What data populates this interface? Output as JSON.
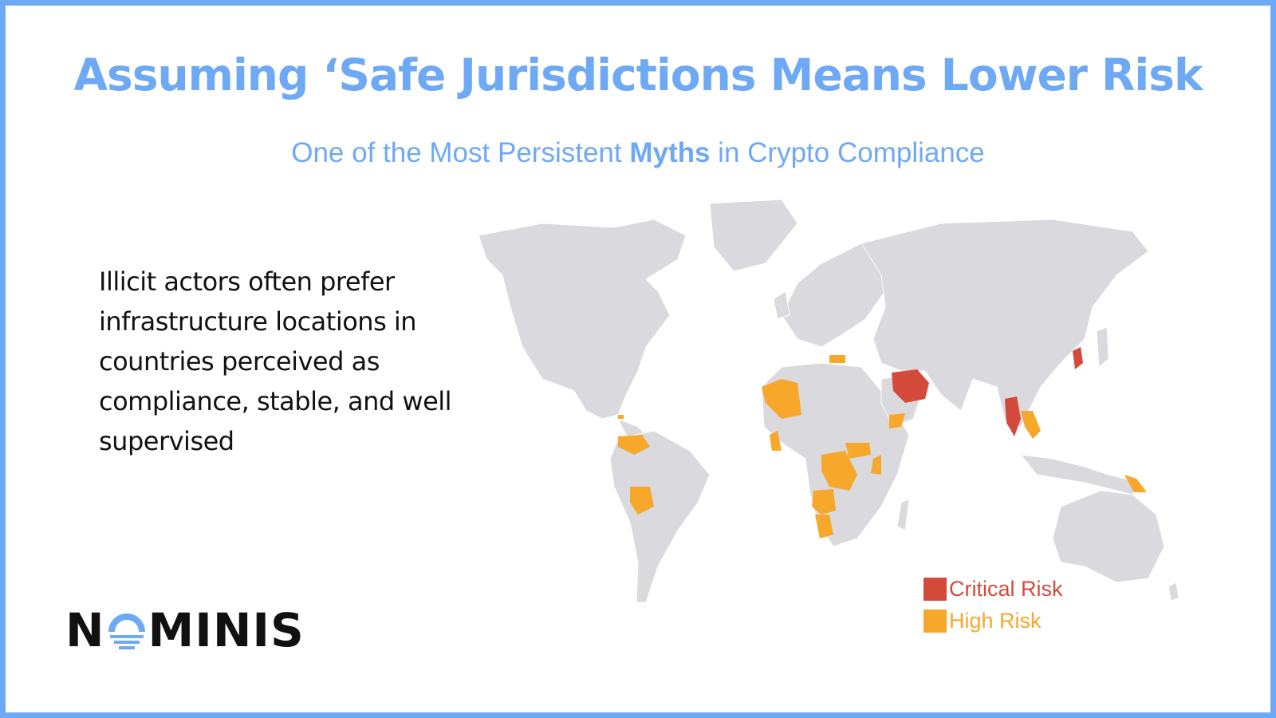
{
  "header": {
    "title": "Assuming ‘Safe Jurisdictions Means Lower Risk",
    "subtitle_before": "One of the Most Persistent ",
    "subtitle_bold": "Myths",
    "subtitle_after": " in Crypto Compliance"
  },
  "body": {
    "text": "Illicit actors often prefer infrastructure locations in countries perceived as compliance, stable, and well supervised"
  },
  "logo": {
    "text_left": "N",
    "text_right": "MINIS",
    "color": "#111111",
    "accent": "#6ea9f5"
  },
  "legend": {
    "items": [
      {
        "label": "Critical Risk",
        "color": "#d44a3a"
      },
      {
        "label": "High Risk",
        "color": "#f7a72a"
      }
    ]
  },
  "colors": {
    "frame": "#6ea9f5",
    "title": "#6ea9f5",
    "land": "#d9d9de",
    "critical": "#d44a3a",
    "high": "#f7a72a"
  }
}
